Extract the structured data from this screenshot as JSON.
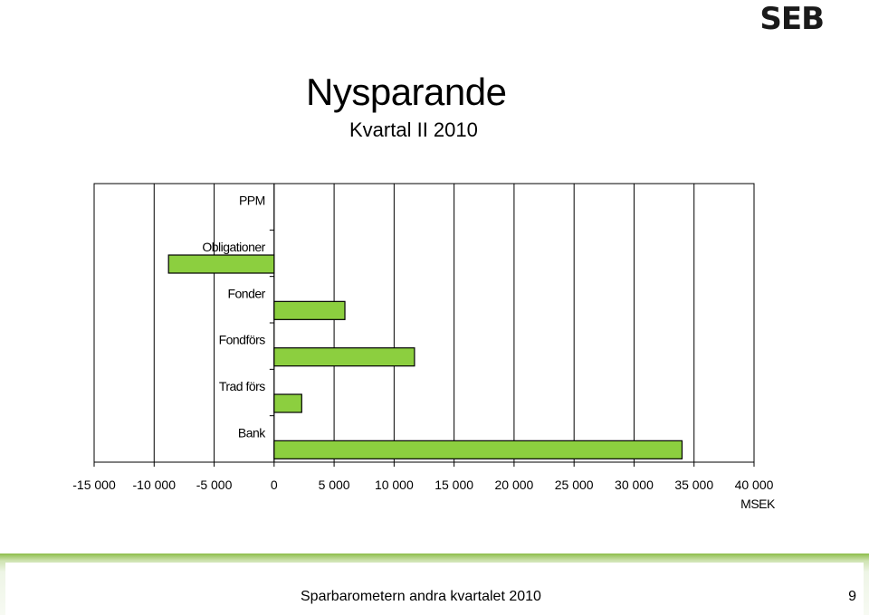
{
  "logo": {
    "text": "SEB"
  },
  "header": {
    "title": "Nysparande",
    "subtitle": "Kvartal II 2010"
  },
  "chart_data": {
    "type": "bar",
    "orientation": "horizontal",
    "categories": [
      "PPM",
      "Obligationer",
      "Fonder",
      "Fondförs",
      "Trad förs",
      "Bank"
    ],
    "values": [
      0,
      -8800,
      5900,
      11700,
      2300,
      34000
    ],
    "xlim": [
      -15000,
      40000
    ],
    "xticks": [
      -15000,
      -10000,
      -5000,
      0,
      5000,
      10000,
      15000,
      20000,
      25000,
      30000,
      35000,
      40000
    ],
    "xtick_labels": [
      "-15 000",
      "-10 000",
      "-5 000",
      "0",
      "5 000",
      "10 000",
      "15 000",
      "20 000",
      "25 000",
      "30 000",
      "35 000",
      "40 000"
    ],
    "xlabel": "MSEK",
    "ylabel": "",
    "grid": "vertical",
    "legend": "none",
    "colors": {
      "bar": "#8ccf3f",
      "bar_border": "#000000",
      "grid": "#000000"
    }
  },
  "footer": {
    "text": "Sparbarometern andra kvartalet 2010",
    "page_number": "9"
  }
}
